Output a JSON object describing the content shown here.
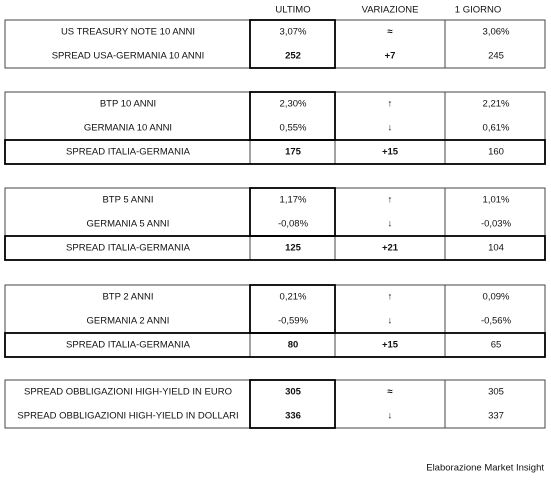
{
  "header": {
    "columns": [
      "ULTIMO",
      "VARIAZIONE",
      "1 GIORNO"
    ]
  },
  "groups": [
    {
      "rows": [
        [
          "US TREASURY NOTE 10 ANNI",
          "3,07%",
          "≈",
          "3,06%"
        ],
        [
          "SPREAD USA-GERMANIA 10 ANNI",
          "252",
          "+7",
          "245"
        ]
      ]
    },
    {
      "rows": [
        [
          "BTP 10 ANNI",
          "2,30%",
          "↑",
          "2,21%"
        ],
        [
          "GERMANIA 10 ANNI",
          "0,55%",
          "↓",
          "0,61%"
        ],
        [
          "SPREAD ITALIA-GERMANIA",
          "175",
          "+15",
          "160"
        ]
      ]
    },
    {
      "rows": [
        [
          "BTP 5 ANNI",
          "1,17%",
          "↑",
          "1,01%"
        ],
        [
          "GERMANIA 5 ANNI",
          "-0,08%",
          "↓",
          "-0,03%"
        ],
        [
          "SPREAD ITALIA-GERMANIA",
          "125",
          "+21",
          "104"
        ]
      ]
    },
    {
      "rows": [
        [
          "BTP 2 ANNI",
          "0,21%",
          "↑",
          "0,09%"
        ],
        [
          "GERMANIA 2 ANNI",
          "-0,59%",
          "↓",
          "-0,56%"
        ],
        [
          "SPREAD ITALIA-GERMANIA",
          "80",
          "+15",
          "65"
        ]
      ]
    },
    {
      "rows": [
        [
          "SPREAD OBBLIGAZIONI HIGH-YIELD IN EURO",
          "305",
          "≈",
          "305"
        ],
        [
          "SPREAD OBBLIGAZIONI HIGH-YIELD IN DOLLARI",
          "336",
          "↓",
          "337"
        ]
      ]
    }
  ],
  "footer": "Elaborazione Market Insight"
}
